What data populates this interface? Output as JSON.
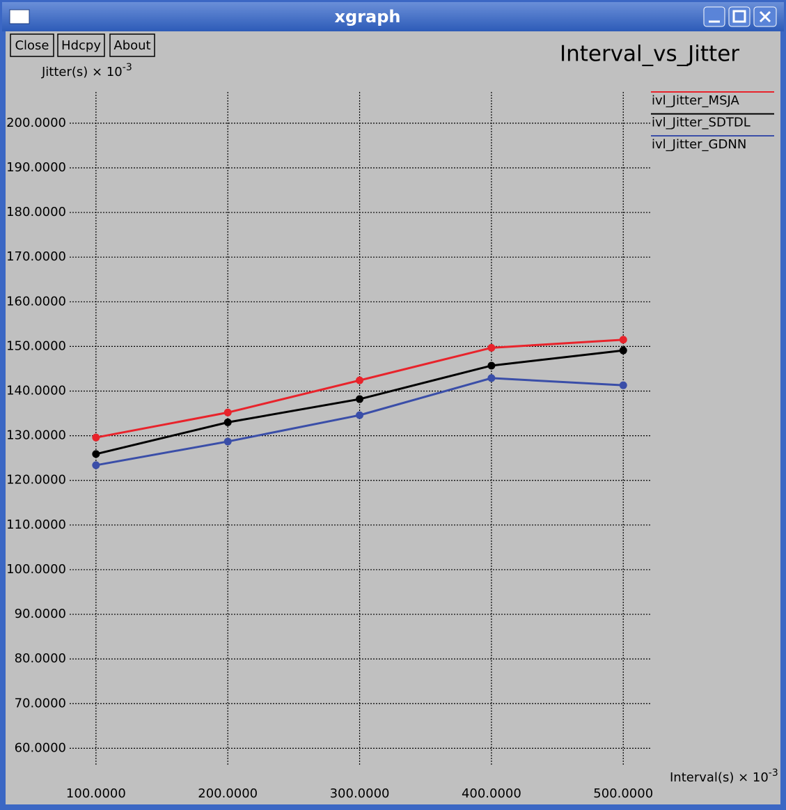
{
  "window": {
    "title": "xgraph",
    "buttons": [
      "Close",
      "Hdcpy",
      "About"
    ]
  },
  "chart_data": {
    "type": "line",
    "title": "Interval_vs_Jitter",
    "y_label": "Jitter(s) × 10",
    "y_label_exponent": "-3",
    "x_label": "Interval(s) × 10",
    "x_label_exponent": "-3",
    "x": [
      100,
      200,
      300,
      400,
      500
    ],
    "series": [
      {
        "name": "ivl_Jitter_MSJA",
        "color": "#e8232b",
        "values": [
          129.6,
          135.2,
          142.4,
          149.7,
          151.5
        ]
      },
      {
        "name": "ivl_Jitter_SDTDL",
        "color": "#000000",
        "values": [
          125.9,
          133.0,
          138.2,
          145.7,
          149.1
        ]
      },
      {
        "name": "ivl_Jitter_GDNN",
        "color": "#3a4ea8",
        "values": [
          123.4,
          128.7,
          134.6,
          142.9,
          141.3
        ]
      }
    ],
    "xlim": [
      80,
      521
    ],
    "ylim": [
      56,
      207
    ],
    "xticks": [
      {
        "value": 100,
        "label": "100.0000"
      },
      {
        "value": 200,
        "label": "200.0000"
      },
      {
        "value": 300,
        "label": "300.0000"
      },
      {
        "value": 400,
        "label": "400.0000"
      },
      {
        "value": 500,
        "label": "500.0000"
      }
    ],
    "yticks": [
      {
        "value": 60,
        "label": "60.0000"
      },
      {
        "value": 70,
        "label": "70.0000"
      },
      {
        "value": 80,
        "label": "80.0000"
      },
      {
        "value": 90,
        "label": "90.0000"
      },
      {
        "value": 100,
        "label": "100.0000"
      },
      {
        "value": 110,
        "label": "110.0000"
      },
      {
        "value": 120,
        "label": "120.0000"
      },
      {
        "value": 130,
        "label": "130.0000"
      },
      {
        "value": 140,
        "label": "140.0000"
      },
      {
        "value": 150,
        "label": "150.0000"
      },
      {
        "value": 160,
        "label": "160.0000"
      },
      {
        "value": 170,
        "label": "170.0000"
      },
      {
        "value": 180,
        "label": "180.0000"
      },
      {
        "value": 190,
        "label": "190.0000"
      },
      {
        "value": 200,
        "label": "200.0000"
      }
    ],
    "grid": true,
    "legend": "right"
  }
}
